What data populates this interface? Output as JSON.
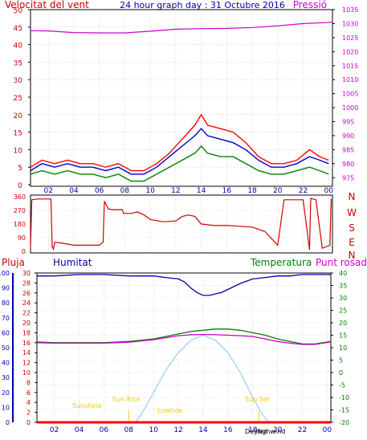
{
  "chart_data": [
    {
      "type": "line",
      "title": "24 hour graph day : 31 Octubre 2016",
      "left_label": "Velocitat del vent",
      "right_label": "Pressió",
      "x_ticks": [
        "02",
        "04",
        "06",
        "08",
        "10",
        "12",
        "14",
        "16",
        "18",
        "20",
        "22",
        "00"
      ],
      "y_left_ticks": [
        0,
        5,
        10,
        15,
        20,
        25,
        30,
        35,
        40,
        45,
        50
      ],
      "y_left_range": [
        0,
        50
      ],
      "y_right_ticks": [
        975,
        980,
        985,
        990,
        995,
        1000,
        1005,
        1010,
        1015,
        1020,
        1025,
        1030,
        1035
      ],
      "y_right_range": [
        972.5,
        1035
      ],
      "x_range_hours": [
        0.6,
        24.3
      ],
      "series": [
        {
          "color": "#ff0000",
          "axis": "left",
          "hours": [
            0.6,
            1.5,
            2.5,
            3.5,
            4.5,
            5.5,
            6.5,
            7.5,
            8.5,
            9.5,
            10.5,
            11.5,
            12.5,
            13.5,
            14,
            14.5,
            15.5,
            16.5,
            17.5,
            18.5,
            19.5,
            20.5,
            21.5,
            22.5,
            23.3,
            24.0
          ],
          "values": [
            5,
            7,
            6,
            7,
            6,
            6,
            5,
            6,
            4,
            4,
            6,
            9,
            13,
            17,
            20,
            17,
            16,
            15,
            12,
            8,
            6,
            6,
            7,
            10,
            8,
            7
          ]
        },
        {
          "color": "#0000cc",
          "axis": "left",
          "hours": [
            0.6,
            1.5,
            2.5,
            3.5,
            4.5,
            5.5,
            6.5,
            7.5,
            8.5,
            9.5,
            10.5,
            11.5,
            12.5,
            13.5,
            14,
            14.5,
            15.5,
            16.5,
            17.5,
            18.5,
            19.5,
            20.5,
            21.5,
            22.5,
            23.3,
            24.0
          ],
          "values": [
            4,
            6,
            5,
            6,
            5,
            5,
            4,
            5,
            3,
            3,
            5,
            8,
            11,
            14,
            16,
            14,
            13,
            12,
            10,
            7,
            5,
            5,
            6,
            8,
            7,
            6
          ]
        },
        {
          "color": "#008000",
          "axis": "left",
          "hours": [
            0.6,
            1.5,
            2.5,
            3.5,
            4.5,
            5.5,
            6.5,
            7.5,
            8.5,
            9.5,
            10.5,
            11.5,
            12.5,
            13.5,
            14,
            14.5,
            15.5,
            16.5,
            17.5,
            18.5,
            19.5,
            20.5,
            21.5,
            22.5,
            23.3,
            24.0
          ],
          "values": [
            3,
            4,
            3,
            4,
            3,
            3,
            2,
            3,
            1,
            1,
            3,
            5,
            7,
            9,
            11,
            9,
            8,
            8,
            6,
            4,
            3,
            3,
            4,
            5,
            4,
            3
          ]
        },
        {
          "color": "#cc00cc",
          "axis": "right",
          "hours": [
            0.6,
            2,
            4,
            6,
            8,
            10,
            12,
            14,
            16,
            18,
            20,
            22,
            24.3
          ],
          "values": [
            1027.5,
            1027.4,
            1026.8,
            1026.7,
            1026.7,
            1027.3,
            1028.0,
            1028.2,
            1028.3,
            1028.6,
            1029.2,
            1030.0,
            1030.5
          ]
        }
      ]
    },
    {
      "type": "line",
      "title": "",
      "y_left_ticks": [
        0,
        90,
        180,
        270,
        360
      ],
      "y_left_range": [
        0,
        360
      ],
      "right_letters": [
        "N",
        "W",
        "S",
        "E",
        "N"
      ],
      "x_range_hours": [
        0.6,
        24.3
      ],
      "series": [
        {
          "color": "#cc0000",
          "hours": [
            0.6,
            0.7,
            1.2,
            2.2,
            2.3,
            2.4,
            2.5,
            3,
            4,
            5,
            6,
            6.3,
            6.4,
            6.7,
            7,
            7.8,
            7.9,
            8.5,
            9,
            9.5,
            10,
            11,
            12,
            12.5,
            13,
            13.5,
            14,
            15,
            16,
            17,
            18,
            19,
            20,
            20.5,
            21,
            22,
            22.5,
            22.6,
            23,
            23.5,
            24.1,
            24.2
          ],
          "values": [
            20,
            340,
            345,
            345,
            30,
            15,
            60,
            55,
            40,
            40,
            40,
            60,
            330,
            280,
            275,
            275,
            250,
            250,
            260,
            240,
            210,
            195,
            200,
            230,
            240,
            230,
            180,
            170,
            170,
            165,
            160,
            130,
            40,
            340,
            340,
            340,
            10,
            350,
            340,
            20,
            40,
            345
          ]
        }
      ]
    },
    {
      "type": "line",
      "title": "",
      "labels": {
        "rain": "Pluja",
        "humidity": "Humitat",
        "temperature": "Temperatura",
        "dew_point": "Punt rosada"
      },
      "x_ticks": [
        "02",
        "04",
        "06",
        "08",
        "10",
        "12",
        "14",
        "16",
        "18",
        "20",
        "22",
        "00"
      ],
      "y_rain_ticks": [
        0,
        2,
        4,
        6,
        8,
        10,
        12,
        14,
        16,
        18,
        20,
        22,
        24,
        26,
        28,
        30
      ],
      "y_rain_range": [
        0,
        30
      ],
      "y_humidity_ticks": [
        0,
        10,
        20,
        30,
        40,
        50,
        60,
        70,
        80,
        90,
        100
      ],
      "y_humidity_range": [
        0,
        100
      ],
      "y_temp_ticks": [
        -20,
        -15,
        -10,
        -5,
        0,
        5,
        10,
        15,
        20,
        25,
        30,
        35,
        40
      ],
      "y_temp_range": [
        -20,
        40
      ],
      "x_range_hours": [
        0.6,
        24.3
      ],
      "series": [
        {
          "name": "Humitat",
          "color": "#0000aa",
          "axis": "humidity",
          "hours": [
            0.6,
            2,
            4,
            6,
            8,
            10,
            11,
            12,
            12.5,
            13,
            13.5,
            14,
            14.5,
            15,
            15.5,
            16,
            17,
            18,
            19,
            20,
            21,
            22,
            23,
            24.3
          ],
          "values": [
            98,
            98,
            99,
            99,
            98,
            98,
            97,
            96,
            94,
            90,
            87,
            85,
            85,
            86,
            87,
            89,
            93,
            96,
            97,
            98,
            98,
            99,
            99,
            99
          ]
        },
        {
          "name": "Temperatura",
          "color": "#008000",
          "axis": "temp",
          "hours": [
            0.6,
            2,
            4,
            6,
            8,
            10,
            11,
            12,
            13,
            14,
            15,
            16,
            17,
            18,
            19,
            20,
            21,
            22,
            23,
            24.3
          ],
          "values": [
            12.3,
            12,
            12,
            12,
            12.5,
            13.5,
            14.5,
            15.5,
            16.5,
            17,
            17.5,
            17.5,
            17,
            16,
            15,
            13.5,
            12.5,
            11.5,
            11.5,
            12.5
          ]
        },
        {
          "name": "Punt rosada",
          "color": "#cc00cc",
          "axis": "temp",
          "hours": [
            0.6,
            2,
            4,
            6,
            8,
            10,
            11,
            12,
            13,
            14,
            15,
            16,
            17,
            18,
            19,
            20,
            21,
            22,
            23,
            24.3
          ],
          "values": [
            12,
            11.8,
            11.8,
            11.8,
            12.2,
            13.2,
            14,
            14.8,
            15.2,
            15.3,
            15.2,
            15,
            14.8,
            14.5,
            13.5,
            12.5,
            11.8,
            11.3,
            11.3,
            12.3
          ]
        },
        {
          "name": "Pluja",
          "color": "#ff0000",
          "axis": "rain",
          "hours": [
            0.6,
            24.3
          ],
          "values": [
            0,
            0
          ]
        }
      ],
      "solar": {
        "color": "#99ccee",
        "hours": [
          8.5,
          9,
          10,
          11,
          12,
          13,
          14,
          15,
          16,
          17,
          18,
          18.8,
          19.3
        ],
        "elevation_deg": [
          -20,
          -17,
          -8,
          1,
          8,
          13,
          15,
          13,
          8,
          0,
          -10,
          -17,
          -20
        ]
      },
      "sun_labels": {
        "sunrise": "Sun Rise",
        "sunset": "Sun Set",
        "daylength": "Daylen",
        "sunshine": "Sunshine",
        "lowtide": "Lowtide",
        "highwind": "Highwind"
      }
    }
  ]
}
